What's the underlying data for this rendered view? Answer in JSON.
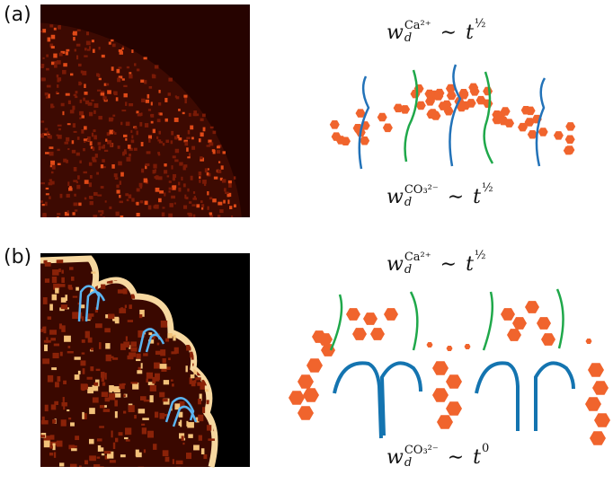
{
  "panels": [
    {
      "label": "(a)",
      "top_formula": {
        "base": "w",
        "sub": "d",
        "sup": "Ca²⁺",
        "relation": "∼",
        "rhs_base": "t",
        "rhs_exponent": "½"
      },
      "bottom_formula": {
        "base": "w",
        "sub": "d",
        "sup": "CO₃²⁻",
        "relation": "∼",
        "rhs_base": "t",
        "rhs_exponent": "½"
      }
    },
    {
      "label": "(b)",
      "top_formula": {
        "base": "w",
        "sub": "d",
        "sup": "Ca²⁺",
        "relation": "∼",
        "rhs_base": "t",
        "rhs_exponent": "½"
      },
      "bottom_formula": {
        "base": "w",
        "sub": "d",
        "sup": "CO₃²⁻",
        "relation": "∼",
        "rhs_base": "t",
        "rhs_exponent": "0"
      }
    }
  ]
}
